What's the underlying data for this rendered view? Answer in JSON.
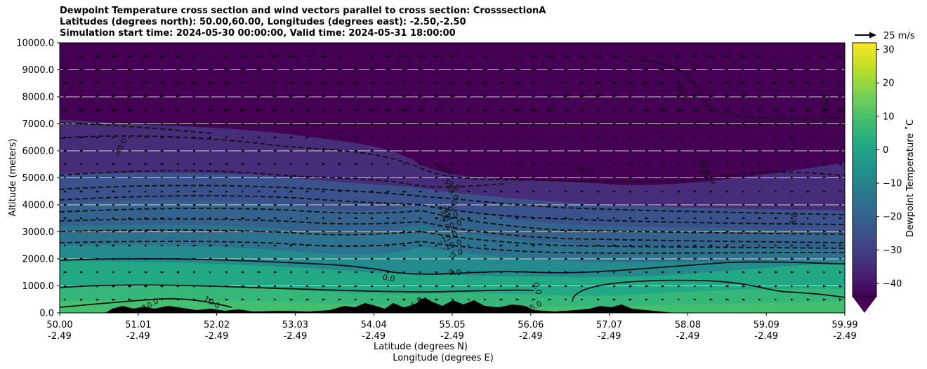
{
  "chart_data": {
    "type": "heatmap",
    "title_lines": [
      "Dewpoint Temperature cross section and wind vectors parallel to cross section: CrosssectionA",
      "Latitudes (degrees north): 50.00,60.00, Longitudes (degrees east): -2.50,-2.50",
      "Simulation start time: 2024-05-30 00:00:00, Valid time: 2024-05-31 18:00:00"
    ],
    "ylabel": "Altitude (meters)",
    "xlabel_lines": [
      "Latitude (degrees N)",
      "Longitude (degrees E)"
    ],
    "ylim": [
      0,
      10000
    ],
    "yticks": [
      "0.0",
      "1000.0",
      "2000.0",
      "3000.0",
      "4000.0",
      "5000.0",
      "6000.0",
      "7000.0",
      "8000.0",
      "9000.0",
      "10000.0"
    ],
    "xticks": [
      {
        "lat": "50.00",
        "lon": "-2.49"
      },
      {
        "lat": "51.01",
        "lon": "-2.49"
      },
      {
        "lat": "52.02",
        "lon": "-2.49"
      },
      {
        "lat": "53.03",
        "lon": "-2.49"
      },
      {
        "lat": "54.04",
        "lon": "-2.49"
      },
      {
        "lat": "55.05",
        "lon": "-2.49"
      },
      {
        "lat": "56.06",
        "lon": "-2.49"
      },
      {
        "lat": "57.07",
        "lon": "-2.49"
      },
      {
        "lat": "58.08",
        "lon": "-2.49"
      },
      {
        "lat": "59.09",
        "lon": "-2.49"
      },
      {
        "lat": "59.99",
        "lon": "-2.49"
      }
    ],
    "colorbar": {
      "label": "Dewpoint Temperature ˚C",
      "ticks": [
        "30",
        "20",
        "10",
        "0",
        "−10",
        "−20",
        "−30",
        "−40"
      ],
      "range": [
        -44,
        32
      ],
      "colors": [
        "#440154",
        "#482475",
        "#414487",
        "#355f8d",
        "#2a788e",
        "#21918c",
        "#22a884",
        "#44bf70",
        "#7ad151",
        "#bddf26",
        "#fde725"
      ]
    },
    "quiver_key": "25 m/s",
    "contour_labels": [
      "-40.0",
      "-40.0",
      "-40.0",
      "-40.0",
      "-35.0",
      "-30.0",
      "-30.0",
      "-30.0",
      "-25.0",
      "-25.0",
      "-20.0",
      "-20.0",
      "-15.0",
      "-10.0",
      "-5.0",
      "0.0",
      "0.0",
      "0.0",
      "10.0",
      "10.0",
      "5.0",
      "5.0",
      "5.0"
    ]
  }
}
